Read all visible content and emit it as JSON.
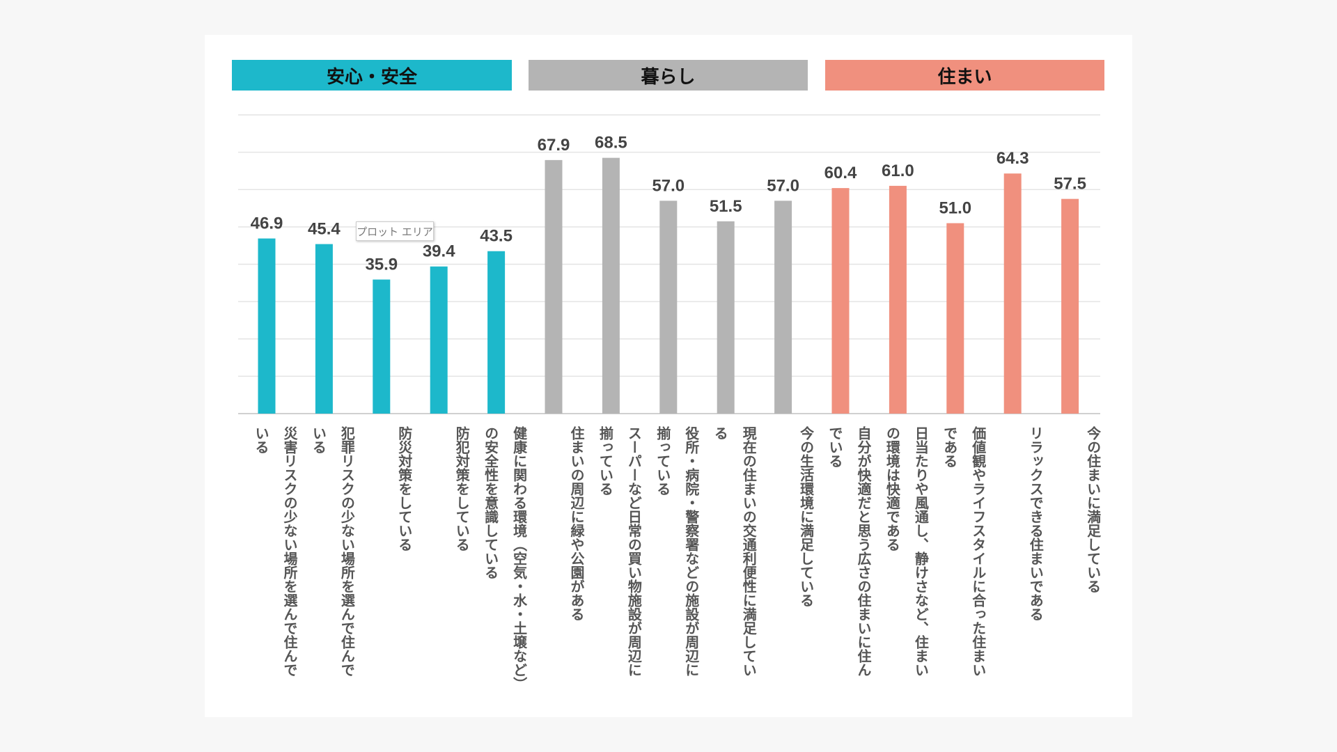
{
  "groups": [
    {
      "label": "安心・安全",
      "color": "#1DB8CB"
    },
    {
      "label": "暮らし",
      "color": "#B4B4B4"
    },
    {
      "label": "住まい",
      "color": "#F0907E"
    }
  ],
  "tooltip": "プロット エリア",
  "chart_data": {
    "type": "bar",
    "ylim": [
      0,
      80
    ],
    "grid": true,
    "categories": [
      "災害リスクの少ない場所を選んで住んでいる",
      "犯罪リスクの少ない場所を選んで住んでいる",
      "防災対策をしている",
      "防犯対策をしている",
      "健康に関わる環境（空気・水・土壌など）の安全性を意識している",
      "住まいの周辺に緑や公園がある",
      "スーパーなど日常の買い物施設が周辺に揃っている",
      "役所・病院・警察署などの施設が周辺に揃っている",
      "現在の住まいの交通利便性に満足している",
      "今の生活環境に満足している",
      "自分が快適だと思う広さの住まいに住んでいる",
      "日当たりや風通し、静けさなど、住まいの環境は快適である",
      "価値観やライフスタイルに合った住まいである",
      "リラックスできる住まいである",
      "今の住まいに満足している"
    ],
    "values": [
      46.9,
      45.4,
      35.9,
      39.4,
      43.5,
      67.9,
      68.5,
      57.0,
      51.5,
      57.0,
      60.4,
      61.0,
      51.0,
      64.3,
      57.5
    ],
    "value_labels": [
      "46.9",
      "45.4",
      "35.9",
      "39.4",
      "43.5",
      "67.9",
      "68.5",
      "57.0",
      "51.5",
      "57.0",
      "60.4",
      "61.0",
      "51.0",
      "64.3",
      "57.5"
    ],
    "group_index": [
      0,
      0,
      0,
      0,
      0,
      1,
      1,
      1,
      1,
      1,
      2,
      2,
      2,
      2,
      2
    ]
  }
}
